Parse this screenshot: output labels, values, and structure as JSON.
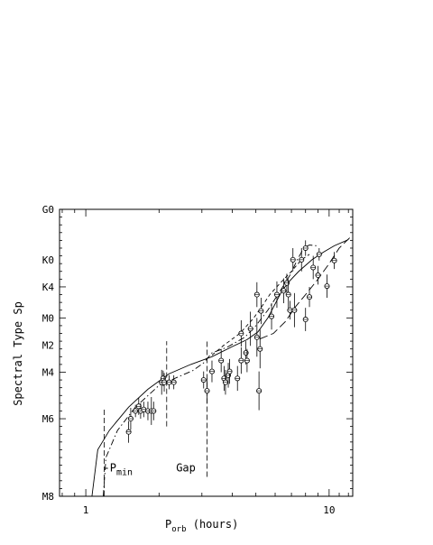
{
  "chart_data": {
    "type": "scatter",
    "xlabel": "P",
    "xlabel_sub": "orb",
    "xlabel_rest": " (hours)",
    "ylabel": "Spectral Type Sp",
    "xscale": "log",
    "xlim": [
      0.78,
      12.5
    ],
    "ylim": [
      0,
      37
    ],
    "x_ticks": [
      {
        "value": 1,
        "label": "1"
      },
      {
        "value": 10,
        "label": "10"
      }
    ],
    "y_ticks": [
      {
        "value": 0,
        "label": "M8"
      },
      {
        "value": 10,
        "label": "M6"
      },
      {
        "value": 16,
        "label": "M4"
      },
      {
        "value": 19.5,
        "label": "M2"
      },
      {
        "value": 23,
        "label": "M0"
      },
      {
        "value": 27,
        "label": "K4"
      },
      {
        "value": 30.5,
        "label": "K0"
      },
      {
        "value": 37,
        "label": "G0"
      }
    ],
    "annotations": [
      {
        "text": "-P",
        "sub": "min",
        "x": 1.18,
        "y": 3.2
      },
      {
        "text": "Gap",
        "x": 2.35,
        "y": 3.2
      }
    ],
    "vertical_markers": [
      {
        "x": 1.19,
        "y0": 0,
        "y1": 11.5
      },
      {
        "x": 2.15,
        "y0": 9,
        "y1": 20
      },
      {
        "x": 3.15,
        "y0": 2.5,
        "y1": 20
      }
    ],
    "series": [
      {
        "style": "solid",
        "points": [
          [
            1.06,
            0
          ],
          [
            1.12,
            6
          ],
          [
            1.25,
            8.5
          ],
          [
            1.5,
            11.5
          ],
          [
            1.8,
            13.8
          ],
          [
            2.2,
            15.8
          ],
          [
            2.7,
            17.0
          ],
          [
            3.3,
            18.0
          ],
          [
            4.0,
            19.3
          ],
          [
            4.6,
            20.2
          ],
          [
            5.1,
            21.2
          ],
          [
            5.6,
            23.0
          ],
          [
            6.0,
            24.8
          ],
          [
            6.4,
            26.5
          ],
          [
            6.9,
            27.8
          ],
          [
            7.5,
            29.0
          ],
          [
            8.5,
            30.5
          ],
          [
            9.5,
            31.5
          ],
          [
            10.5,
            32.3
          ],
          [
            12.0,
            33.1
          ]
        ]
      },
      {
        "style": "dashdot",
        "points": [
          [
            1.18,
            0
          ],
          [
            1.21,
            5
          ],
          [
            1.35,
            8.5
          ],
          [
            1.6,
            11.5
          ],
          [
            2.0,
            14.3
          ],
          [
            2.4,
            15.4
          ],
          [
            2.75,
            16.2
          ],
          [
            3.05,
            17.2
          ],
          [
            3.3,
            18.5
          ],
          [
            3.8,
            19.2
          ],
          [
            4.5,
            20.5
          ],
          [
            5.0,
            22.0
          ],
          [
            5.6,
            24.0
          ],
          [
            6.3,
            26.5
          ],
          [
            6.9,
            28.5
          ],
          [
            7.4,
            30.5
          ],
          [
            7.9,
            32.1
          ],
          [
            8.3,
            32.4
          ],
          [
            8.9,
            32.3
          ]
        ]
      },
      {
        "style": "dashed",
        "points": [
          [
            3.3,
            18.2
          ],
          [
            3.7,
            19.5
          ],
          [
            4.3,
            21.0
          ],
          [
            4.9,
            23.0
          ],
          [
            5.3,
            24.5
          ],
          [
            5.7,
            26.0
          ],
          [
            6.3,
            27.5
          ],
          [
            7.0,
            29.0
          ],
          [
            7.7,
            30.5
          ],
          [
            8.3,
            31.2
          ]
        ]
      },
      {
        "style": "longdash",
        "points": [
          [
            5.2,
            20.3
          ],
          [
            5.9,
            21.0
          ],
          [
            6.6,
            22.5
          ],
          [
            7.3,
            24.5
          ],
          [
            8.1,
            26.2
          ],
          [
            9.0,
            28.0
          ],
          [
            10.0,
            30.0
          ],
          [
            11.0,
            32.0
          ],
          [
            12.3,
            33.5
          ]
        ]
      }
    ],
    "points": [
      {
        "x": 1.5,
        "y": 8.3,
        "err": 1.4
      },
      {
        "x": 1.53,
        "y": 10.0,
        "err": 1.4
      },
      {
        "x": 1.6,
        "y": 11.0,
        "err": 0.8
      },
      {
        "x": 1.65,
        "y": 11.6,
        "err": 1.1
      },
      {
        "x": 1.68,
        "y": 11.0,
        "err": 1.0
      },
      {
        "x": 1.73,
        "y": 11.2,
        "err": 1.0
      },
      {
        "x": 1.8,
        "y": 11.0,
        "err": 1.2
      },
      {
        "x": 1.86,
        "y": 11.0,
        "err": 1.8
      },
      {
        "x": 1.9,
        "y": 11.0,
        "err": 1.2
      },
      {
        "x": 2.05,
        "y": 14.7,
        "err": 1.6
      },
      {
        "x": 2.08,
        "y": 15.2,
        "err": 1.0
      },
      {
        "x": 2.1,
        "y": 14.7,
        "err": 1.2
      },
      {
        "x": 2.2,
        "y": 14.7,
        "err": 0.9
      },
      {
        "x": 2.3,
        "y": 14.7,
        "err": 0.9
      },
      {
        "x": 3.05,
        "y": 15.0,
        "err": 1.1
      },
      {
        "x": 3.15,
        "y": 13.6,
        "err": 1.6
      },
      {
        "x": 3.3,
        "y": 16.1,
        "err": 1.4
      },
      {
        "x": 3.6,
        "y": 17.5,
        "err": 1.5
      },
      {
        "x": 3.7,
        "y": 15.2,
        "err": 1.6
      },
      {
        "x": 3.75,
        "y": 14.7,
        "err": 1.6
      },
      {
        "x": 3.85,
        "y": 15.6,
        "err": 1.6
      },
      {
        "x": 3.9,
        "y": 16.1,
        "err": 1.6
      },
      {
        "x": 4.2,
        "y": 15.2,
        "err": 1.6
      },
      {
        "x": 4.35,
        "y": 17.5,
        "err": 1.7
      },
      {
        "x": 4.35,
        "y": 21.0,
        "err": 1.7
      },
      {
        "x": 4.55,
        "y": 18.5,
        "err": 1.5
      },
      {
        "x": 4.6,
        "y": 17.5,
        "err": 1.5
      },
      {
        "x": 4.75,
        "y": 21.6,
        "err": 2.2
      },
      {
        "x": 5.05,
        "y": 20.5,
        "err": 2.5
      },
      {
        "x": 5.05,
        "y": 26.0,
        "err": 1.6
      },
      {
        "x": 5.15,
        "y": 13.6,
        "err": 2.5
      },
      {
        "x": 5.2,
        "y": 19.0,
        "err": 2.5
      },
      {
        "x": 5.25,
        "y": 23.9,
        "err": 1.7
      },
      {
        "x": 5.8,
        "y": 23.2,
        "err": 1.7
      },
      {
        "x": 6.1,
        "y": 26.0,
        "err": 1.7
      },
      {
        "x": 6.5,
        "y": 26.5,
        "err": 1.6
      },
      {
        "x": 6.7,
        "y": 27.5,
        "err": 1.2
      },
      {
        "x": 6.8,
        "y": 26.0,
        "err": 2.0
      },
      {
        "x": 6.9,
        "y": 24.0,
        "err": 1.2
      },
      {
        "x": 7.1,
        "y": 30.5,
        "err": 1.5
      },
      {
        "x": 7.2,
        "y": 24.0,
        "err": 2.2
      },
      {
        "x": 7.7,
        "y": 30.5,
        "err": 1.5
      },
      {
        "x": 8.0,
        "y": 32.0,
        "err": 1.0
      },
      {
        "x": 8.0,
        "y": 22.8,
        "err": 1.5
      },
      {
        "x": 8.3,
        "y": 25.7,
        "err": 1.3
      },
      {
        "x": 8.6,
        "y": 29.5,
        "err": 1.5
      },
      {
        "x": 9.0,
        "y": 28.5,
        "err": 1.2
      },
      {
        "x": 9.1,
        "y": 31.2,
        "err": 0.8
      },
      {
        "x": 9.8,
        "y": 27.1,
        "err": 1.5
      },
      {
        "x": 10.5,
        "y": 30.4,
        "err": 1.1
      }
    ]
  }
}
